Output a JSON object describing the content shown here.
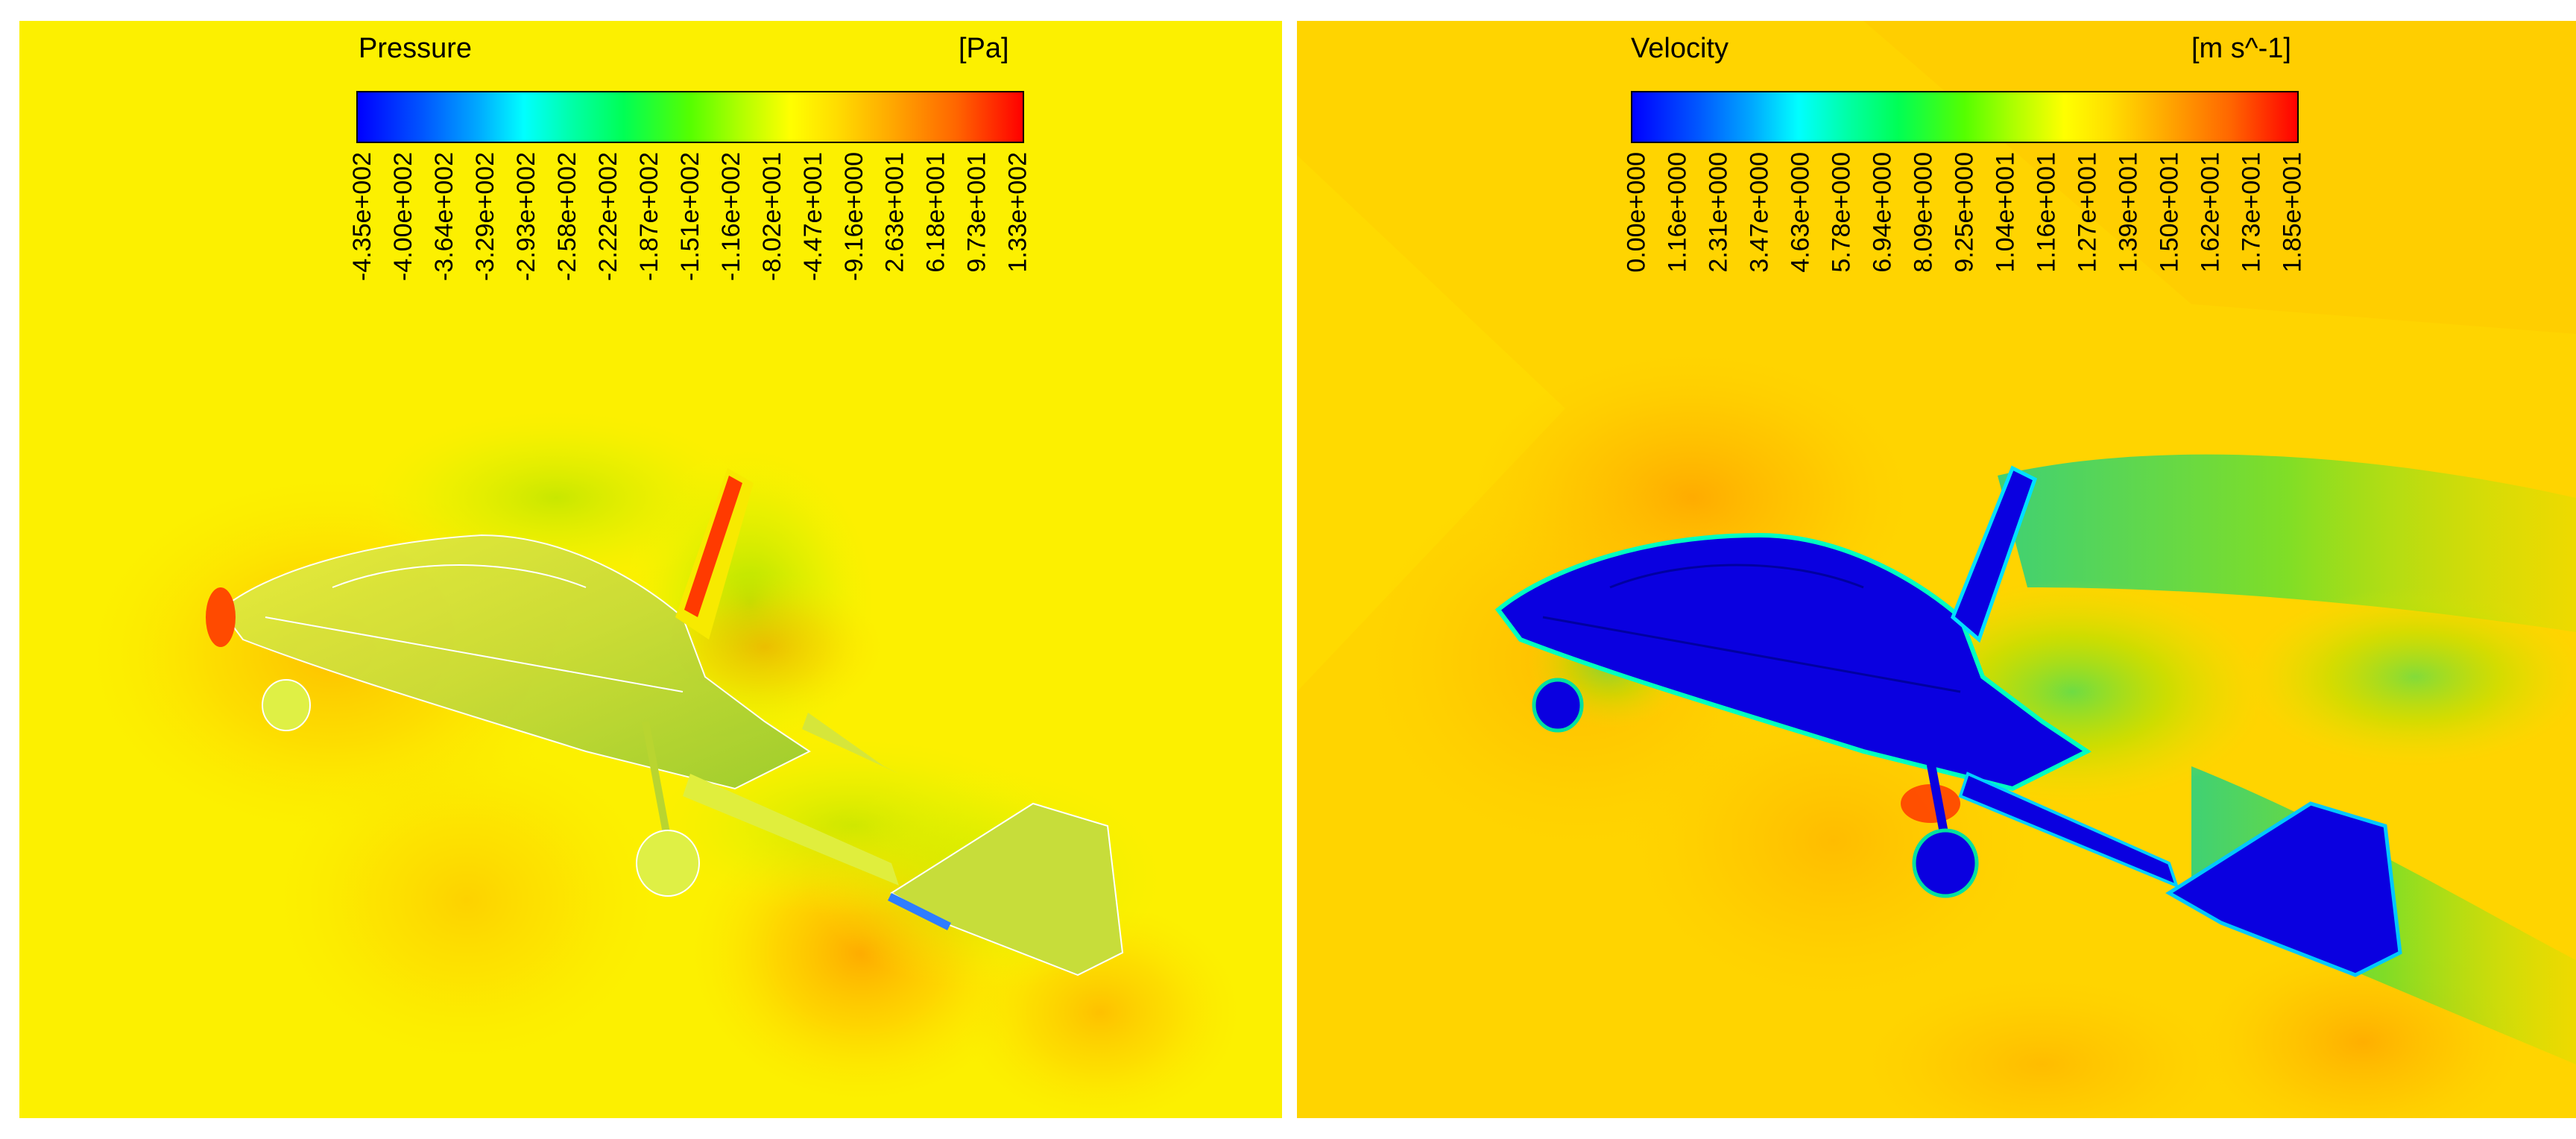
{
  "panels": [
    {
      "title": "Pressure",
      "unit": "[Pa]",
      "ticks": [
        "-4.35e+002",
        "-4.00e+002",
        "-3.64e+002",
        "-3.29e+002",
        "-2.93e+002",
        "-2.58e+002",
        "-2.22e+002",
        "-1.87e+002",
        "-1.51e+002",
        "-1.16e+002",
        "-8.02e+001",
        "-4.47e+001",
        "-9.16e+000",
        "2.63e+001",
        "6.18e+001",
        "9.73e+001",
        "1.33e+002"
      ],
      "background_color": "#fcf000",
      "body_color": "#c8dd3a"
    },
    {
      "title": "Velocity",
      "unit": "[m s^-1]",
      "ticks": [
        "0.00e+000",
        "1.16e+000",
        "2.31e+000",
        "3.47e+000",
        "4.63e+000",
        "5.78e+000",
        "6.94e+000",
        "8.09e+000",
        "9.25e+000",
        "1.04e+001",
        "1.16e+001",
        "1.27e+001",
        "1.39e+001",
        "1.50e+001",
        "1.62e+001",
        "1.73e+001",
        "1.85e+001"
      ],
      "background_color": "#ffd400",
      "body_color": "#0000e6"
    }
  ],
  "colormap": [
    "#0000ff",
    "#00ffff",
    "#00ff55",
    "#ffff00",
    "#ff0000"
  ]
}
